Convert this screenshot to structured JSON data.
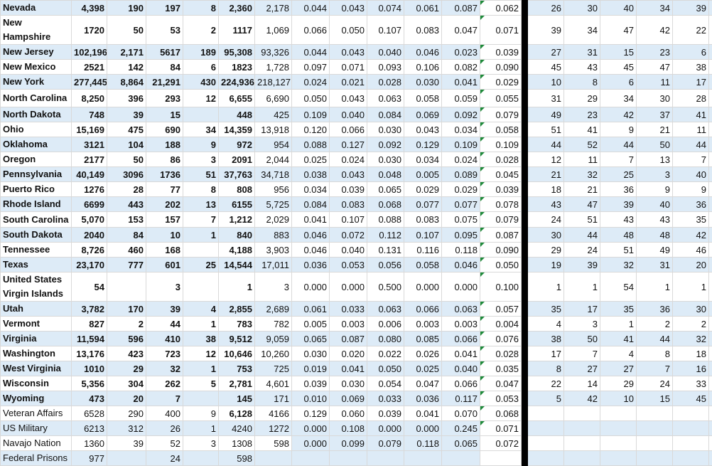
{
  "sheet": {
    "rows": [
      {
        "name": "Nevada",
        "v": [
          "4,398",
          "190",
          "197",
          "8",
          "2,360",
          "2,178"
        ],
        "r": [
          "0.044",
          "0.043",
          "0.074",
          "0.061",
          "0.087"
        ],
        "avg": "0.062",
        "k": [
          "26",
          "30",
          "40",
          "34",
          "39"
        ],
        "bold": true
      },
      {
        "name": "New Hampshire",
        "v": [
          "1720",
          "50",
          "53",
          "2",
          "1117",
          "1,069"
        ],
        "r": [
          "0.066",
          "0.050",
          "0.107",
          "0.083",
          "0.047"
        ],
        "avg": "0.071",
        "k": [
          "39",
          "34",
          "47",
          "42",
          "22"
        ],
        "bold": true
      },
      {
        "name": "New Jersey",
        "v": [
          "102,196",
          "2,171",
          "5617",
          "189",
          "95,308",
          "93,326"
        ],
        "r": [
          "0.044",
          "0.043",
          "0.040",
          "0.046",
          "0.023"
        ],
        "avg": "0.039",
        "k": [
          "27",
          "31",
          "15",
          "23",
          "6"
        ],
        "bold": true
      },
      {
        "name": "New Mexico",
        "v": [
          "2521",
          "142",
          "84",
          "6",
          "1823",
          "1,728"
        ],
        "r": [
          "0.097",
          "0.071",
          "0.093",
          "0.106",
          "0.082"
        ],
        "avg": "0.090",
        "k": [
          "45",
          "43",
          "45",
          "47",
          "38"
        ],
        "bold": true
      },
      {
        "name": "New York",
        "v": [
          "277,445",
          "8,864",
          "21,291",
          "430",
          "224,936",
          "218,127"
        ],
        "r": [
          "0.024",
          "0.021",
          "0.028",
          "0.030",
          "0.041"
        ],
        "avg": "0.029",
        "k": [
          "10",
          "8",
          "6",
          "11",
          "17"
        ],
        "bold": true
      },
      {
        "name": "North Carolina",
        "v": [
          "8,250",
          "396",
          "293",
          "12",
          "6,655",
          "6,690"
        ],
        "r": [
          "0.050",
          "0.043",
          "0.063",
          "0.058",
          "0.059"
        ],
        "avg": "0.055",
        "k": [
          "31",
          "29",
          "34",
          "30",
          "28"
        ],
        "bold": true
      },
      {
        "name": "North Dakota",
        "v": [
          "748",
          "39",
          "15",
          "",
          "448",
          "425"
        ],
        "r": [
          "0.109",
          "0.040",
          "0.084",
          "0.069",
          "0.092"
        ],
        "avg": "0.079",
        "k": [
          "49",
          "23",
          "42",
          "37",
          "41"
        ],
        "bold": true
      },
      {
        "name": "Ohio",
        "v": [
          "15,169",
          "475",
          "690",
          "34",
          "14,359",
          "13,918"
        ],
        "r": [
          "0.120",
          "0.066",
          "0.030",
          "0.043",
          "0.034"
        ],
        "avg": "0.058",
        "k": [
          "51",
          "41",
          "9",
          "21",
          "11"
        ],
        "bold": true
      },
      {
        "name": "Oklahoma",
        "v": [
          "3121",
          "104",
          "188",
          "9",
          "972",
          "954"
        ],
        "r": [
          "0.088",
          "0.127",
          "0.092",
          "0.129",
          "0.109"
        ],
        "avg": "0.109",
        "k": [
          "44",
          "52",
          "44",
          "50",
          "44"
        ],
        "bold": true
      },
      {
        "name": "Oregon",
        "v": [
          "2177",
          "50",
          "86",
          "3",
          "2091",
          "2,044"
        ],
        "r": [
          "0.025",
          "0.024",
          "0.030",
          "0.034",
          "0.024"
        ],
        "avg": "0.028",
        "k": [
          "12",
          "11",
          "7",
          "13",
          "7"
        ],
        "bold": true
      },
      {
        "name": "Pennsylvania",
        "v": [
          "40,149",
          "3096",
          "1736",
          "51",
          "37,763",
          "34,718"
        ],
        "r": [
          "0.038",
          "0.043",
          "0.048",
          "0.005",
          "0.089"
        ],
        "avg": "0.045",
        "k": [
          "21",
          "32",
          "25",
          "3",
          "40"
        ],
        "bold": true
      },
      {
        "name": "Puerto Rico",
        "v": [
          "1276",
          "28",
          "77",
          "8",
          "808",
          "956"
        ],
        "r": [
          "0.034",
          "0.039",
          "0.065",
          "0.029",
          "0.029"
        ],
        "avg": "0.039",
        "k": [
          "18",
          "21",
          "36",
          "9",
          "9"
        ],
        "bold": true
      },
      {
        "name": "Rhode Island",
        "v": [
          "6699",
          "443",
          "202",
          "13",
          "6155",
          "5,725"
        ],
        "r": [
          "0.084",
          "0.083",
          "0.068",
          "0.077",
          "0.077"
        ],
        "avg": "0.078",
        "k": [
          "43",
          "47",
          "39",
          "40",
          "36"
        ],
        "bold": true
      },
      {
        "name": "South Carolina",
        "v": [
          "5,070",
          "153",
          "157",
          "7",
          "1,212",
          "2,029"
        ],
        "r": [
          "0.041",
          "0.107",
          "0.088",
          "0.083",
          "0.075"
        ],
        "avg": "0.079",
        "k": [
          "24",
          "51",
          "43",
          "43",
          "35"
        ],
        "bold": true
      },
      {
        "name": "South Dakota",
        "v": [
          "2040",
          "84",
          "10",
          "1",
          "840",
          "883"
        ],
        "r": [
          "0.046",
          "0.072",
          "0.112",
          "0.107",
          "0.095"
        ],
        "avg": "0.087",
        "k": [
          "30",
          "44",
          "48",
          "48",
          "42"
        ],
        "bold": true
      },
      {
        "name": "Tennessee",
        "v": [
          "8,726",
          "460",
          "168",
          "",
          "4,188",
          "3,903"
        ],
        "r": [
          "0.046",
          "0.040",
          "0.131",
          "0.116",
          "0.118"
        ],
        "avg": "0.090",
        "k": [
          "29",
          "24",
          "51",
          "49",
          "46"
        ],
        "bold": true
      },
      {
        "name": "Texas",
        "v": [
          "23,170",
          "777",
          "601",
          "25",
          "14,544",
          "17,011"
        ],
        "r": [
          "0.036",
          "0.053",
          "0.056",
          "0.058",
          "0.046"
        ],
        "avg": "0.050",
        "k": [
          "19",
          "39",
          "32",
          "31",
          "20"
        ],
        "bold": true
      },
      {
        "name": "United States Virgin Islands",
        "v": [
          "54",
          "",
          "3",
          "",
          "1",
          "3"
        ],
        "r": [
          "0.000",
          "0.000",
          "0.500",
          "0.000",
          "0.000"
        ],
        "avg": "0.100",
        "k": [
          "1",
          "1",
          "54",
          "1",
          "1"
        ],
        "bold": true
      },
      {
        "name": "Utah",
        "v": [
          "3,782",
          "170",
          "39",
          "4",
          "2,855",
          "2,689"
        ],
        "r": [
          "0.061",
          "0.033",
          "0.063",
          "0.066",
          "0.063"
        ],
        "avg": "0.057",
        "k": [
          "35",
          "17",
          "35",
          "36",
          "30"
        ],
        "bold": true
      },
      {
        "name": "Vermont",
        "v": [
          "827",
          "2",
          "44",
          "1",
          "783",
          "782"
        ],
        "r": [
          "0.005",
          "0.003",
          "0.006",
          "0.003",
          "0.003"
        ],
        "avg": "0.004",
        "k": [
          "4",
          "3",
          "1",
          "2",
          "2"
        ],
        "bold": true
      },
      {
        "name": "Virginia",
        "v": [
          "11,594",
          "596",
          "410",
          "38",
          "9,512",
          "9,059"
        ],
        "r": [
          "0.065",
          "0.087",
          "0.080",
          "0.085",
          "0.066"
        ],
        "avg": "0.076",
        "k": [
          "38",
          "50",
          "41",
          "44",
          "32"
        ],
        "bold": true
      },
      {
        "name": "Washington",
        "v": [
          "13,176",
          "423",
          "723",
          "12",
          "10,646",
          "10,260"
        ],
        "r": [
          "0.030",
          "0.020",
          "0.022",
          "0.026",
          "0.041"
        ],
        "avg": "0.028",
        "k": [
          "17",
          "7",
          "4",
          "8",
          "18"
        ],
        "bold": true
      },
      {
        "name": "West Virginia",
        "v": [
          "1010",
          "29",
          "32",
          "1",
          "753",
          "725"
        ],
        "r": [
          "0.019",
          "0.041",
          "0.050",
          "0.025",
          "0.040"
        ],
        "avg": "0.035",
        "k": [
          "8",
          "27",
          "27",
          "7",
          "16"
        ],
        "bold": true
      },
      {
        "name": "Wisconsin",
        "v": [
          "5,356",
          "304",
          "262",
          "5",
          "2,781",
          "4,601"
        ],
        "r": [
          "0.039",
          "0.030",
          "0.054",
          "0.047",
          "0.066"
        ],
        "avg": "0.047",
        "k": [
          "22",
          "14",
          "29",
          "24",
          "33"
        ],
        "bold": true
      },
      {
        "name": "Wyoming",
        "v": [
          "473",
          "20",
          "7",
          "",
          "145",
          "171"
        ],
        "r": [
          "0.010",
          "0.069",
          "0.033",
          "0.036",
          "0.117"
        ],
        "avg": "0.053",
        "k": [
          "5",
          "42",
          "10",
          "15",
          "45"
        ],
        "bold": true
      },
      {
        "name": "Veteran Affairs",
        "v": [
          "6528",
          "290",
          "400",
          "9",
          "6,128",
          "4166"
        ],
        "r": [
          "0.129",
          "0.060",
          "0.039",
          "0.041",
          "0.070"
        ],
        "avg": "0.068",
        "k": [
          "",
          "",
          "",
          "",
          ""
        ],
        "bold": false,
        "bold_cols": [
          4
        ]
      },
      {
        "name": "US Military",
        "v": [
          "6213",
          "312",
          "26",
          "1",
          "4240",
          "1272"
        ],
        "r": [
          "0.000",
          "0.108",
          "0.000",
          "0.000",
          "0.245"
        ],
        "avg": "0.071",
        "k": [
          "",
          "",
          "",
          "",
          ""
        ],
        "bold": false
      },
      {
        "name": "Navajo Nation",
        "v": [
          "1360",
          "39",
          "52",
          "3",
          "1308",
          "598"
        ],
        "r": [
          "0.000",
          "0.099",
          "0.079",
          "0.118",
          "0.065"
        ],
        "avg": "0.072",
        "k": [
          "",
          "",
          "",
          "",
          ""
        ],
        "bold": false
      },
      {
        "name": "Federal Prisons",
        "v": [
          "977",
          "",
          "24",
          "",
          "598",
          ""
        ],
        "r": [
          "",
          "",
          "",
          "",
          ""
        ],
        "avg": "",
        "k": [
          "",
          "",
          "",
          "",
          ""
        ],
        "bold": false
      }
    ],
    "colors": {
      "band": "#ddebf7",
      "grid": "#d9d9d9",
      "divider": "#000000",
      "error_flag": "#1e8a3a"
    }
  }
}
